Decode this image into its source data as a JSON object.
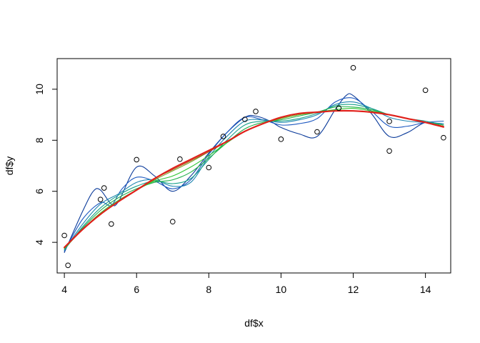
{
  "chart_data": {
    "type": "scatter",
    "title": "",
    "xlabel": "df$x",
    "ylabel": "df$y",
    "xlim": [
      3.8,
      14.7
    ],
    "ylim": [
      2.8,
      11.2
    ],
    "x_ticks": [
      4,
      6,
      8,
      10,
      12,
      14
    ],
    "y_ticks": [
      4,
      6,
      8,
      10
    ],
    "x_tick_labels": [
      "4",
      "6",
      "8",
      "10",
      "12",
      "14"
    ],
    "y_tick_labels": [
      "4",
      "6",
      "8",
      "10"
    ],
    "grid": false,
    "legend": "none",
    "points": {
      "x": [
        4.0,
        4.1,
        5.0,
        5.1,
        5.3,
        6.0,
        7.0,
        7.2,
        8.0,
        8.4,
        9.0,
        9.3,
        10.0,
        11.0,
        11.6,
        12.0,
        13.0,
        13.0,
        14.0,
        14.5
      ],
      "y": [
        4.27,
        3.1,
        5.68,
        6.13,
        4.72,
        7.24,
        4.81,
        7.26,
        6.93,
        8.15,
        8.82,
        9.13,
        8.04,
        8.33,
        9.26,
        10.84,
        8.74,
        7.58,
        9.96,
        8.1
      ],
      "marker": "open-circle",
      "color": "#000000"
    },
    "series": [
      {
        "color": "#0a3a9a",
        "x": [
          4.0,
          4.5,
          4.8,
          5.0,
          5.3,
          5.5,
          6.0,
          6.5,
          7.0,
          7.5,
          8.0,
          8.5,
          9.0,
          9.3,
          9.7,
          10.0,
          10.5,
          11.0,
          11.5,
          11.8,
          12.0,
          12.5,
          13.0,
          13.5,
          14.0,
          14.5
        ],
        "y": [
          3.6,
          5.2,
          6.0,
          6.05,
          5.5,
          5.6,
          6.95,
          6.6,
          6.0,
          6.6,
          7.5,
          8.3,
          8.9,
          8.95,
          8.75,
          8.5,
          8.25,
          8.15,
          9.2,
          9.75,
          9.75,
          9.05,
          8.15,
          8.3,
          8.7,
          8.6
        ]
      },
      {
        "color": "#1d58c0",
        "x": [
          4.0,
          4.5,
          5.0,
          5.3,
          5.6,
          6.0,
          6.5,
          7.0,
          7.5,
          8.0,
          8.5,
          9.0,
          9.5,
          10.0,
          10.5,
          11.0,
          11.5,
          12.0,
          12.5,
          13.0,
          13.5,
          14.0,
          14.5
        ],
        "y": [
          3.65,
          4.9,
          5.55,
          5.45,
          6.1,
          6.55,
          6.4,
          6.1,
          6.45,
          7.45,
          8.3,
          8.9,
          8.8,
          8.6,
          8.65,
          8.85,
          9.5,
          9.65,
          9.15,
          8.55,
          8.55,
          8.7,
          8.75
        ]
      },
      {
        "color": "#1f86b0",
        "x": [
          4.0,
          4.5,
          5.0,
          5.5,
          6.0,
          6.5,
          7.0,
          7.5,
          8.0,
          8.5,
          9.0,
          9.5,
          10.0,
          10.5,
          11.0,
          11.5,
          12.0,
          12.5,
          13.0,
          13.5,
          14.0,
          14.5
        ],
        "y": [
          3.7,
          4.7,
          5.5,
          5.9,
          6.35,
          6.45,
          6.2,
          6.35,
          7.35,
          8.15,
          8.75,
          8.8,
          8.7,
          8.8,
          9.0,
          9.4,
          9.5,
          9.25,
          8.9,
          8.75,
          8.7,
          8.65
        ]
      },
      {
        "color": "#1aa28a",
        "x": [
          4.0,
          4.5,
          5.0,
          5.5,
          6.0,
          6.5,
          7.0,
          7.5,
          8.0,
          8.5,
          9.0,
          9.5,
          10.0,
          10.5,
          11.0,
          11.5,
          12.0,
          12.5,
          13.0,
          13.5,
          14.0,
          14.5
        ],
        "y": [
          3.7,
          4.6,
          5.35,
          5.85,
          6.2,
          6.4,
          6.3,
          6.5,
          7.25,
          8.0,
          8.6,
          8.75,
          8.75,
          8.85,
          9.05,
          9.35,
          9.4,
          9.25,
          9.0,
          8.85,
          8.75,
          8.6
        ]
      },
      {
        "color": "#22b04a",
        "x": [
          4.0,
          4.5,
          5.0,
          5.5,
          6.0,
          6.5,
          7.0,
          7.5,
          8.0,
          8.5,
          9.0,
          9.5,
          10.0,
          10.5,
          11.0,
          11.5,
          12.0,
          12.5,
          13.0,
          13.5,
          14.0,
          14.5
        ],
        "y": [
          3.75,
          4.55,
          5.25,
          5.75,
          6.1,
          6.35,
          6.45,
          6.75,
          7.3,
          7.9,
          8.45,
          8.7,
          8.8,
          8.95,
          9.1,
          9.3,
          9.3,
          9.2,
          9.0,
          8.85,
          8.7,
          8.6
        ]
      },
      {
        "color": "#2ec632",
        "x": [
          4.0,
          4.5,
          5.0,
          5.5,
          6.0,
          6.5,
          7.0,
          7.5,
          8.0,
          8.5,
          9.0,
          9.5,
          10.0,
          10.5,
          11.0,
          11.5,
          12.0,
          12.5,
          13.0,
          13.5,
          14.0,
          14.5
        ],
        "y": [
          3.75,
          4.5,
          5.15,
          5.65,
          6.05,
          6.4,
          6.6,
          6.95,
          7.4,
          7.9,
          8.35,
          8.65,
          8.85,
          9.0,
          9.1,
          9.2,
          9.25,
          9.15,
          9.0,
          8.85,
          8.7,
          8.55
        ]
      },
      {
        "color": "#7aa020",
        "x": [
          4.0,
          4.5,
          5.0,
          5.5,
          6.0,
          6.5,
          7.0,
          7.5,
          8.0,
          8.5,
          9.0,
          9.5,
          10.0,
          10.5,
          11.0,
          11.5,
          12.0,
          12.5,
          13.0,
          13.5,
          14.0,
          14.5
        ],
        "y": [
          3.8,
          4.5,
          5.1,
          5.6,
          6.05,
          6.45,
          6.8,
          7.15,
          7.55,
          7.95,
          8.35,
          8.65,
          8.85,
          9.0,
          9.1,
          9.15,
          9.15,
          9.1,
          9.0,
          8.85,
          8.7,
          8.55
        ]
      },
      {
        "color": "#b04a18",
        "x": [
          4.0,
          4.5,
          5.0,
          5.5,
          6.0,
          6.5,
          7.0,
          7.5,
          8.0,
          8.5,
          9.0,
          9.5,
          10.0,
          10.5,
          11.0,
          11.5,
          12.0,
          12.5,
          13.0,
          13.5,
          14.0,
          14.5
        ],
        "y": [
          3.8,
          4.5,
          5.1,
          5.6,
          6.05,
          6.5,
          6.85,
          7.2,
          7.55,
          7.95,
          8.35,
          8.65,
          8.9,
          9.05,
          9.1,
          9.15,
          9.15,
          9.1,
          9.0,
          8.85,
          8.7,
          8.55
        ]
      },
      {
        "color": "#e0201a",
        "x": [
          4.0,
          4.5,
          5.0,
          5.5,
          6.0,
          6.5,
          7.0,
          7.5,
          8.0,
          8.5,
          9.0,
          9.5,
          10.0,
          10.5,
          11.0,
          11.5,
          12.0,
          12.5,
          13.0,
          13.5,
          14.0,
          14.5
        ],
        "y": [
          3.8,
          4.5,
          5.1,
          5.6,
          6.05,
          6.5,
          6.9,
          7.25,
          7.6,
          7.95,
          8.35,
          8.65,
          8.9,
          9.05,
          9.1,
          9.15,
          9.15,
          9.1,
          9.0,
          8.85,
          8.7,
          8.52
        ]
      }
    ]
  }
}
